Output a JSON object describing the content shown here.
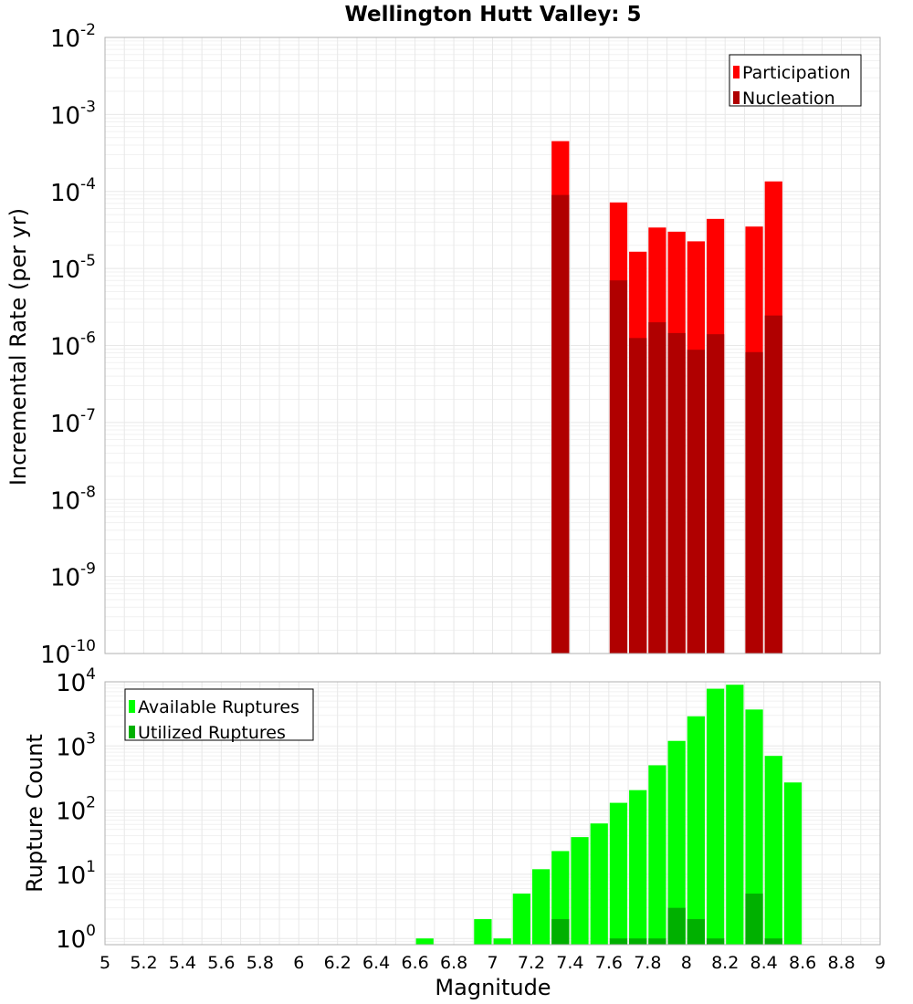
{
  "chart_data": [
    {
      "type": "bar",
      "title": "Wellington Hutt Valley: 5",
      "xlabel": "",
      "ylabel": "Incremental Rate (per yr)",
      "xlim": [
        5,
        9
      ],
      "ylim": [
        1e-10,
        0.01
      ],
      "yscale": "log",
      "ytick_exponents": [
        -10,
        -9,
        -8,
        -7,
        -6,
        -5,
        -4,
        -3,
        -2
      ],
      "bin_width": 0.1,
      "legend_position": "top-right",
      "colors": {
        "participation": "#ff0000",
        "nucleation": "#b00000"
      },
      "series": [
        {
          "name": "Participation",
          "x": [
            7.35,
            7.65,
            7.75,
            7.85,
            7.95,
            8.05,
            8.15,
            8.35,
            8.45
          ],
          "values": [
            0.00045,
            7.2e-05,
            1.65e-05,
            3.4e-05,
            3e-05,
            2.25e-05,
            4.4e-05,
            3.5e-05,
            0.000135
          ]
        },
        {
          "name": "Nucleation",
          "x": [
            7.35,
            7.65,
            7.75,
            7.85,
            7.95,
            8.05,
            8.15,
            8.35,
            8.45
          ],
          "values": [
            9e-05,
            7e-06,
            1.25e-06,
            2e-06,
            1.45e-06,
            8.8e-07,
            1.4e-06,
            8.2e-07,
            2.45e-06
          ]
        }
      ]
    },
    {
      "type": "bar",
      "title": "",
      "xlabel": "Magnitude",
      "ylabel": "Rupture Count",
      "xlim": [
        5,
        9
      ],
      "xticks": [
        "5",
        "5.2",
        "5.4",
        "5.6",
        "5.8",
        "6",
        "6.2",
        "6.4",
        "6.6",
        "6.8",
        "7",
        "7.2",
        "7.4",
        "7.6",
        "7.8",
        "8",
        "8.2",
        "8.4",
        "8.6",
        "8.8",
        "9"
      ],
      "ylim": [
        0.8,
        10000
      ],
      "yscale": "log",
      "ytick_exponents": [
        0,
        1,
        2,
        3,
        4
      ],
      "bin_width": 0.1,
      "legend_position": "top-left",
      "colors": {
        "available": "#00ff00",
        "utilized": "#00b000"
      },
      "series": [
        {
          "name": "Available Ruptures",
          "x": [
            6.65,
            6.95,
            7.05,
            7.15,
            7.25,
            7.35,
            7.45,
            7.55,
            7.65,
            7.75,
            7.85,
            7.95,
            8.05,
            8.15,
            8.25,
            8.35,
            8.45,
            8.55
          ],
          "values": [
            1,
            2,
            1,
            5,
            12,
            23,
            38,
            62,
            130,
            205,
            500,
            1200,
            2900,
            7800,
            9000,
            3700,
            700,
            270
          ]
        },
        {
          "name": "Utilized Ruptures",
          "x": [
            7.35,
            7.65,
            7.75,
            7.85,
            7.95,
            8.05,
            8.15,
            8.35,
            8.45
          ],
          "values": [
            2,
            1,
            1,
            1,
            3,
            2,
            1,
            5,
            1
          ]
        }
      ]
    }
  ]
}
